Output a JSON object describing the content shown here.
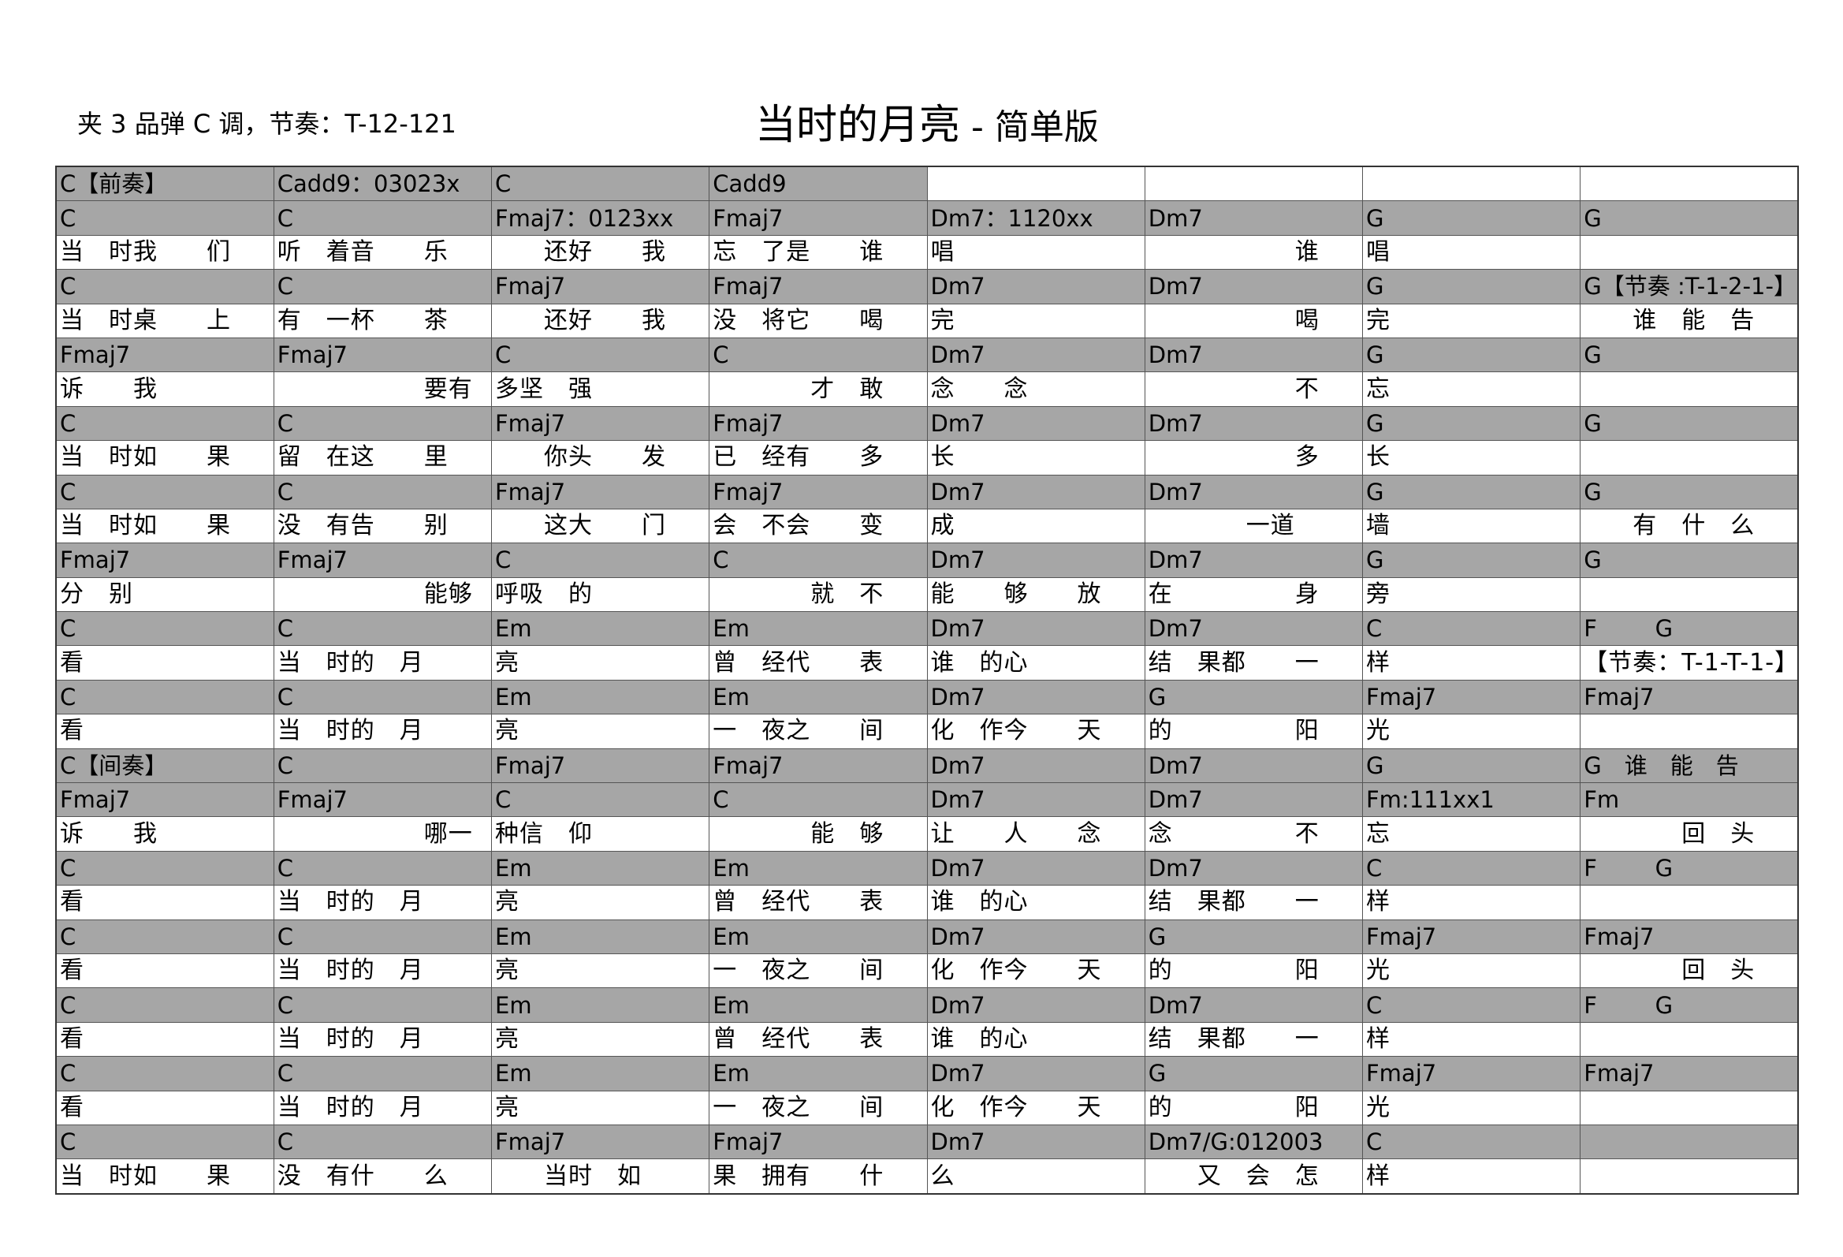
{
  "header": {
    "capo_info": "夹 3 品弹 C 调，节奏：T-12-121",
    "title": "当时的月亮",
    "separator": " - ",
    "version": "简单版"
  },
  "colors": {
    "chord_row": "#a6a6a6",
    "lyric_row": "#ffffff",
    "border": "#555555"
  },
  "sheet": {
    "rows": [
      {
        "type": "chord",
        "cells": [
          "C【前奏】",
          "Cadd9：03023x",
          "C",
          "Cadd9",
          "",
          "",
          "",
          ""
        ]
      },
      {
        "type": "chord",
        "cells": [
          "C",
          "C",
          "Fmaj7：0123xx",
          "Fmaj7",
          "Dm7：1120xx",
          "Dm7",
          "G",
          "G"
        ]
      },
      {
        "type": "lyric",
        "cells": [
          "当　时我　　们",
          "听　着音　　乐",
          "　　还好　　我",
          "忘　了是　　谁",
          "唱",
          "　　　　　　谁",
          "唱",
          ""
        ]
      },
      {
        "type": "chord",
        "cells": [
          "C",
          "C",
          "Fmaj7",
          "Fmaj7",
          "Dm7",
          "Dm7",
          "G",
          "G【节奏 :T-1-2-1-】"
        ]
      },
      {
        "type": "lyric",
        "cells": [
          "当　时桌　　上",
          "有　一杯　　茶",
          "　　还好　　我",
          "没　将它　　喝",
          "完",
          "　　　　　　喝",
          "完",
          "　　谁　能　告"
        ]
      },
      {
        "type": "chord",
        "cells": [
          "Fmaj7",
          "Fmaj7",
          "C",
          "C",
          "Dm7",
          "Dm7",
          "G",
          "G"
        ]
      },
      {
        "type": "lyric",
        "cells": [
          "诉　　我",
          "　　　　　　要有",
          "多坚　强",
          "　　　　才　敢",
          "念　　念",
          "　　　　　　不",
          "忘",
          ""
        ]
      },
      {
        "type": "chord",
        "cells": [
          "C",
          "C",
          "Fmaj7",
          "Fmaj7",
          "Dm7",
          "Dm7",
          "G",
          "G"
        ]
      },
      {
        "type": "lyric",
        "cells": [
          "当　时如　　果",
          "留　在这　　里",
          "　　你头　　发",
          "已　经有　　多",
          "长",
          "　　　　　　多",
          "长",
          ""
        ]
      },
      {
        "type": "chord",
        "cells": [
          "C",
          "C",
          "Fmaj7",
          "Fmaj7",
          "Dm7",
          "Dm7",
          "G",
          "G"
        ]
      },
      {
        "type": "lyric",
        "cells": [
          "当　时如　　果",
          "没　有告　　别",
          "　　这大　　门",
          "会　不会　　变",
          "成",
          "　　　　一道",
          "墙",
          "　　有　什　么"
        ]
      },
      {
        "type": "chord",
        "cells": [
          "Fmaj7",
          "Fmaj7",
          "C",
          "C",
          "Dm7",
          "Dm7",
          "G",
          "G"
        ]
      },
      {
        "type": "lyric",
        "cells": [
          "分　别",
          "　　　　　　能够",
          "呼吸　的",
          "　　　　就　不",
          "能　　够　　放",
          "在　　　　　身",
          "旁",
          ""
        ]
      },
      {
        "type": "chord",
        "cells": [
          "C",
          "C",
          "Em",
          "Em",
          "Dm7",
          "Dm7",
          "C",
          "F        G"
        ]
      },
      {
        "type": "lyric",
        "cells": [
          "看",
          "当　时的　月",
          "亮",
          "曾　经代　　表",
          "谁　的心",
          "结　果都　　一",
          "样",
          "【节奏：T-1-T-1-】"
        ]
      },
      {
        "type": "chord",
        "cells": [
          "C",
          "C",
          "Em",
          "Em",
          "Dm7",
          "G",
          "Fmaj7",
          "Fmaj7"
        ]
      },
      {
        "type": "lyric",
        "cells": [
          "看",
          "当　时的　月",
          "亮",
          "一　夜之　　间",
          "化　作今　　天",
          "的　　　　　阳",
          "光",
          ""
        ]
      },
      {
        "type": "chord",
        "cells": [
          "C【间奏】",
          "C",
          "Fmaj7",
          "Fmaj7",
          "Dm7",
          "Dm7",
          "G",
          "G　谁　能　告"
        ]
      },
      {
        "type": "chord",
        "cells": [
          "Fmaj7",
          "Fmaj7",
          "C",
          "C",
          "Dm7",
          "Dm7",
          "Fm:111xx1",
          "Fm"
        ]
      },
      {
        "type": "lyric",
        "cells": [
          "诉　　我",
          "　　　　　　哪一",
          "种信　仰",
          "　　　　能　够",
          "让　　人　　念",
          "念　　　　　不",
          "忘",
          "　　　　回　头"
        ]
      },
      {
        "type": "chord",
        "cells": [
          "C",
          "C",
          "Em",
          "Em",
          "Dm7",
          "Dm7",
          "C",
          "F        G"
        ]
      },
      {
        "type": "lyric",
        "cells": [
          "看",
          "当　时的　月",
          "亮",
          "曾　经代　　表",
          "谁　的心",
          "结　果都　　一",
          "样",
          ""
        ]
      },
      {
        "type": "chord",
        "cells": [
          "C",
          "C",
          "Em",
          "Em",
          "Dm7",
          "G",
          "Fmaj7",
          "Fmaj7"
        ]
      },
      {
        "type": "lyric",
        "cells": [
          "看",
          "当　时的　月",
          "亮",
          "一　夜之　　间",
          "化　作今　　天",
          "的　　　　　阳",
          "光",
          "　　　　回　头"
        ]
      },
      {
        "type": "chord",
        "cells": [
          "C",
          "C",
          "Em",
          "Em",
          "Dm7",
          "Dm7",
          "C",
          "F        G"
        ]
      },
      {
        "type": "lyric",
        "cells": [
          "看",
          "当　时的　月",
          "亮",
          "曾　经代　　表",
          "谁　的心",
          "结　果都　　一",
          "样",
          ""
        ]
      },
      {
        "type": "chord",
        "cells": [
          "C",
          "C",
          "Em",
          "Em",
          "Dm7",
          "G",
          "Fmaj7",
          "Fmaj7"
        ]
      },
      {
        "type": "lyric",
        "cells": [
          "看",
          "当　时的　月",
          "亮",
          "一　夜之　　间",
          "化　作今　　天",
          "的　　　　　阳",
          "光",
          ""
        ]
      },
      {
        "type": "chord",
        "cells": [
          "C",
          "C",
          "Fmaj7",
          "Fmaj7",
          "Dm7",
          "Dm7/G:012003",
          "C",
          ""
        ]
      },
      {
        "type": "lyric",
        "cells": [
          "当　时如　　果",
          "没　有什　　么",
          "　　当时　如",
          "果　拥有　　什",
          "么",
          "　　又　会　怎",
          "样",
          ""
        ]
      }
    ]
  }
}
